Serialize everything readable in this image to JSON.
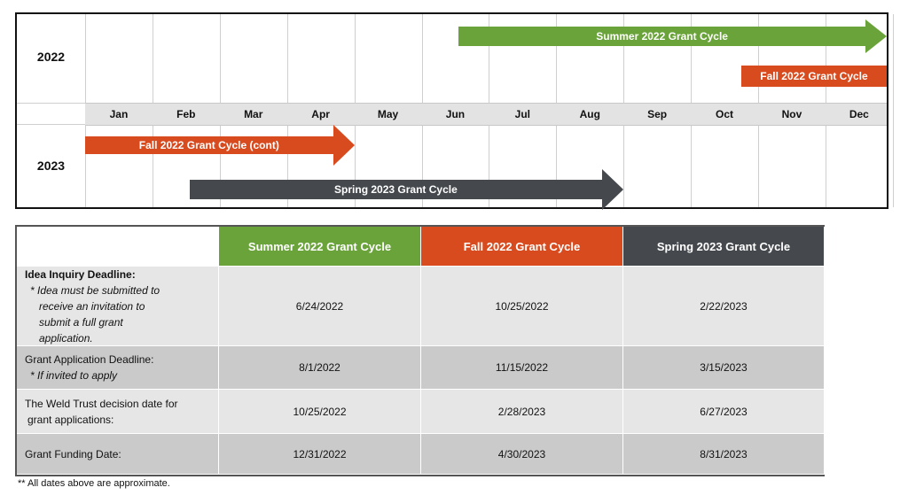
{
  "timeline": {
    "years": [
      "2022",
      "2023"
    ],
    "months": [
      "Jan",
      "Feb",
      "Mar",
      "Apr",
      "May",
      "Jun",
      "Jul",
      "Aug",
      "Sep",
      "Oct",
      "Nov",
      "Dec"
    ],
    "bars": [
      {
        "label": "Summer 2022 Grant Cycle",
        "year": "2022",
        "start_month": 6.55,
        "end_month": 13,
        "color": "#6aa33a",
        "arrow": true
      },
      {
        "label": "Fall 2022 Grant Cycle",
        "year": "2022",
        "start_month": 10.75,
        "end_month": 13,
        "color": "#d74b1f",
        "arrow": false
      },
      {
        "label": "Fall 2022 Grant Cycle (cont)",
        "year": "2023",
        "start_month": 1,
        "end_month": 5,
        "color": "#d74b1f",
        "arrow": true
      },
      {
        "label": "Spring 2023 Grant Cycle",
        "year": "2023",
        "start_month": 2.55,
        "end_month": 9,
        "color": "#45494e",
        "arrow": true
      }
    ]
  },
  "table": {
    "columns": [
      {
        "label": "Summer 2022 Grant Cycle",
        "color": "#6aa33a"
      },
      {
        "label": "Fall 2022 Grant Cycle",
        "color": "#d74b1f"
      },
      {
        "label": "Spring 2023 Grant Cycle",
        "color": "#45494e"
      }
    ],
    "rows": [
      {
        "label_title": "Idea Inquiry Deadline:",
        "label_lines": [
          "* Idea must be submitted to",
          "receive an invitation to",
          "submit a full grant",
          "application."
        ],
        "label_italic": true,
        "values": [
          "6/24/2022",
          "10/25/2022",
          "2/22/2023"
        ]
      },
      {
        "label_title": "Grant Application Deadline:",
        "label_lines": [
          "* If invited to apply"
        ],
        "label_italic": true,
        "values": [
          "8/1/2022",
          "11/15/2022",
          "3/15/2023"
        ]
      },
      {
        "label_title": "The Weld Trust decision date for",
        "label_lines": [
          "grant applications:"
        ],
        "label_italic": false,
        "values": [
          "10/25/2022",
          "2/28/2023",
          "6/27/2023"
        ]
      },
      {
        "label_title": "Grant Funding Date:",
        "label_lines": [],
        "label_italic": false,
        "values": [
          "12/31/2022",
          "4/30/2023",
          "8/31/2023"
        ]
      }
    ]
  },
  "footnote": "** All dates above are approximate."
}
